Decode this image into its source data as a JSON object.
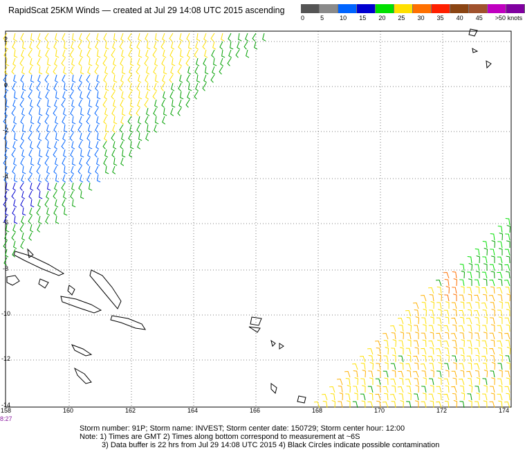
{
  "header": {
    "title": "RapidScat 25KM Winds — created at Jul 29 14:08 UTC 2015 ascending"
  },
  "scale": {
    "colors": [
      "#555555",
      "#8a8a8a",
      "#00c8ff",
      "#0064ff",
      "#0000d0",
      "#00a000",
      "#00e000",
      "#ffe000",
      "#ffb000",
      "#ff7000",
      "#ff2000",
      "#d00000",
      "#8b4513",
      "#a0522d",
      "#ff00ff",
      "#c000c0",
      "#8000a0",
      "#500080"
    ],
    "labels": [
      "0",
      "5",
      "10",
      "15",
      "20",
      "25",
      "30",
      "35",
      "40",
      "45",
      ">50 knots"
    ]
  },
  "axes": {
    "lat_labels": [
      "2",
      "0",
      "-2",
      "-4",
      "-6",
      "-8",
      "-10",
      "-12",
      "-14"
    ],
    "lon_labels": [
      "158",
      "160",
      "162",
      "164",
      "166",
      "168",
      "170",
      "172",
      "174"
    ]
  },
  "footer": {
    "time_stamp": "8:27",
    "line1": "Storm number: 91P;  Storm name: INVEST;  Storm center date: 150729;  Storm center hour: 12:00",
    "line2": "Note: 1) Times are GMT  2) Times along bottom correspond to measurement at ~6S",
    "line3": "3) Data buffer is 22 hrs from Jul 29 14:08 UTC 2015  4) Black Circles indicate possible contamination"
  }
}
